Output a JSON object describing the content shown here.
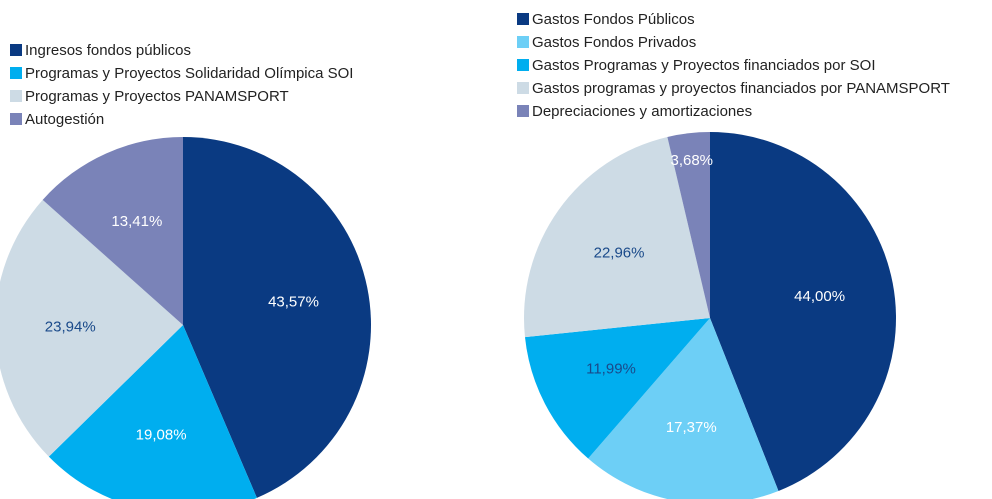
{
  "chart_data": [
    {
      "type": "pie",
      "categories": [
        "Ingresos fondos públicos",
        "Programas y Proyectos Solidaridad Olímpica SOI",
        "Programas y Proyectos PANAMSPORT",
        "Autogestión"
      ],
      "values": [
        43.57,
        19.08,
        23.94,
        13.41
      ],
      "value_labels": [
        "43,57%",
        "19,08%",
        "23,94%",
        "13,41%"
      ],
      "colors": [
        "#0a3a82",
        "#00aeef",
        "#cddbe5",
        "#7a83b8"
      ],
      "label_colors": [
        "#ffffff",
        "#ffffff",
        "#1a4a8a",
        "#ffffff"
      ]
    },
    {
      "type": "pie",
      "categories": [
        "Gastos Fondos Públicos",
        "Gastos Fondos Privados",
        "Gastos Programas y Proyectos financiados por SOI",
        "Gastos programas y proyectos financiados por PANAMSPORT",
        "Depreciaciones y amortizaciones"
      ],
      "values": [
        44.0,
        17.37,
        11.99,
        22.96,
        3.68
      ],
      "value_labels": [
        "44,00%",
        "17,37%",
        "11,99%",
        "22,96%",
        "3,68%"
      ],
      "colors": [
        "#0a3a82",
        "#6dcff6",
        "#00aeef",
        "#cddbe5",
        "#7a83b8"
      ],
      "label_colors": [
        "#ffffff",
        "#ffffff",
        "#1a4a8a",
        "#1a4a8a",
        "#ffffff"
      ]
    }
  ]
}
